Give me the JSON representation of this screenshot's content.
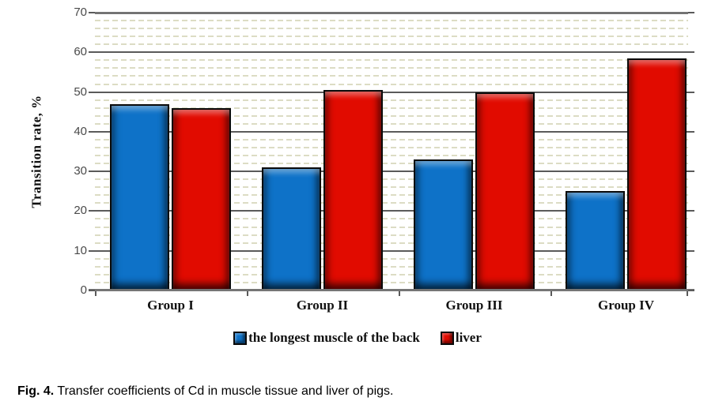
{
  "chart_data": {
    "type": "bar",
    "title": "",
    "xlabel": "",
    "ylabel": "Transition rate, %",
    "categories": [
      "Group I",
      "Group II",
      "Group III",
      "Group IV"
    ],
    "series": [
      {
        "name": "the longest muscle of the back",
        "color": "#0e72c8",
        "values": [
          47,
          31,
          33,
          25
        ]
      },
      {
        "name": "liver",
        "color": "#e10b00",
        "values": [
          46,
          50.5,
          50,
          58.5
        ]
      }
    ],
    "ylim": [
      0,
      70
    ],
    "yticks": [
      0,
      10,
      20,
      30,
      40,
      50,
      60,
      70
    ],
    "minor_gridline_step": 2,
    "grid": "horizontal major solid gray + minor dashed khaki",
    "legend_position": "bottom-center",
    "colors": {
      "major_gridline": "#5a5a5a",
      "minor_gridline": "#dcdcc4",
      "axis_line": "#757575",
      "tick_label": "#4a4a4a",
      "bar_outline": "#0a0a0a"
    }
  },
  "caption": {
    "prefix": "Fig. 4.",
    "text": " Transfer coefficients of Cd in muscle tissue and liver of pigs."
  }
}
